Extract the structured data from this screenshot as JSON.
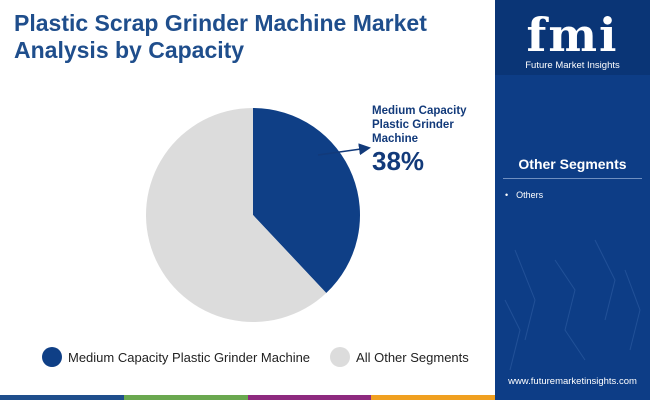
{
  "header": {
    "title": "Plastic Scrap Grinder Machine Market Analysis by Capacity"
  },
  "chart_data": {
    "type": "pie",
    "title": "Plastic Scrap Grinder Machine Market Analysis by Capacity",
    "slices": [
      {
        "label": "Medium Capacity Plastic Grinder Machine",
        "value": 38,
        "color": "#0f3f86"
      },
      {
        "label": "All Other Segments",
        "value": 62,
        "color": "#dcdcdc"
      }
    ],
    "callout": {
      "label": "Medium Capacity Plastic Grinder Machine",
      "value_text": "38%"
    },
    "legend_position": "bottom"
  },
  "legend": {
    "items": [
      {
        "label": "Medium Capacity Plastic Grinder Machine",
        "color": "#0f3f86"
      },
      {
        "label": "All Other Segments",
        "color": "#dcdcdc"
      }
    ]
  },
  "sidebar": {
    "logo_text": "fmi",
    "logo_subtitle": "Future Market Insights",
    "segments_title": "Other Segments",
    "segments": [
      "Others"
    ],
    "website": "www.futuremarketinsights.com"
  },
  "bottom_bar_colors": [
    "#1f4e8c",
    "#6aa84f",
    "#8e2a7f",
    "#f0a020"
  ],
  "colors": {
    "brand_blue": "#0d3d86",
    "title_blue": "#1f4e8c"
  }
}
